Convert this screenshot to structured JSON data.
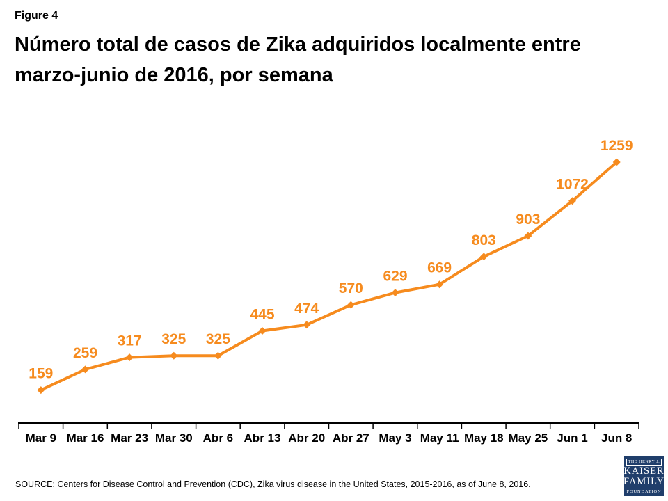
{
  "page": {
    "figure_label": "Figure 4",
    "title_line1": "Número total de casos de Zika adquiridos localmente entre",
    "title_line2": "marzo-junio de 2016, por semana",
    "source": "SOURCE: Centers for Disease Control and Prevention (CDC), Zika virus disease in the United States, 2015-2016, as of June 8, 2016."
  },
  "logo": {
    "top_text": "THE HENRY J.",
    "name_line1": "KAISER",
    "name_line2": "FAMILY",
    "bottom_text": "FOUNDATION",
    "bg_color": "#203E6B",
    "text_color": "#FFFFFF"
  },
  "colors": {
    "series_orange": "#F68B1E",
    "axis_black": "#000000",
    "title_black": "#000000"
  },
  "chart_data": {
    "type": "line",
    "title": "Número total de casos de Zika adquiridos localmente entre marzo-junio de 2016, por semana",
    "categories": [
      "Mar 9",
      "Mar 16",
      "Mar 23",
      "Mar 30",
      "Abr 6",
      "Abr 13",
      "Abr 20",
      "Abr 27",
      "May 3",
      "May 11",
      "May 18",
      "May 25",
      "Jun 1",
      "Jun 8"
    ],
    "values": [
      159,
      259,
      317,
      325,
      325,
      445,
      474,
      570,
      629,
      669,
      803,
      903,
      1072,
      1259
    ],
    "series_color": "#F68B1E",
    "marker": "diamond",
    "data_labels": true,
    "xlabel": "",
    "ylabel": "",
    "ylim": [
      0,
      1350
    ],
    "grid": false,
    "legend": "none"
  }
}
